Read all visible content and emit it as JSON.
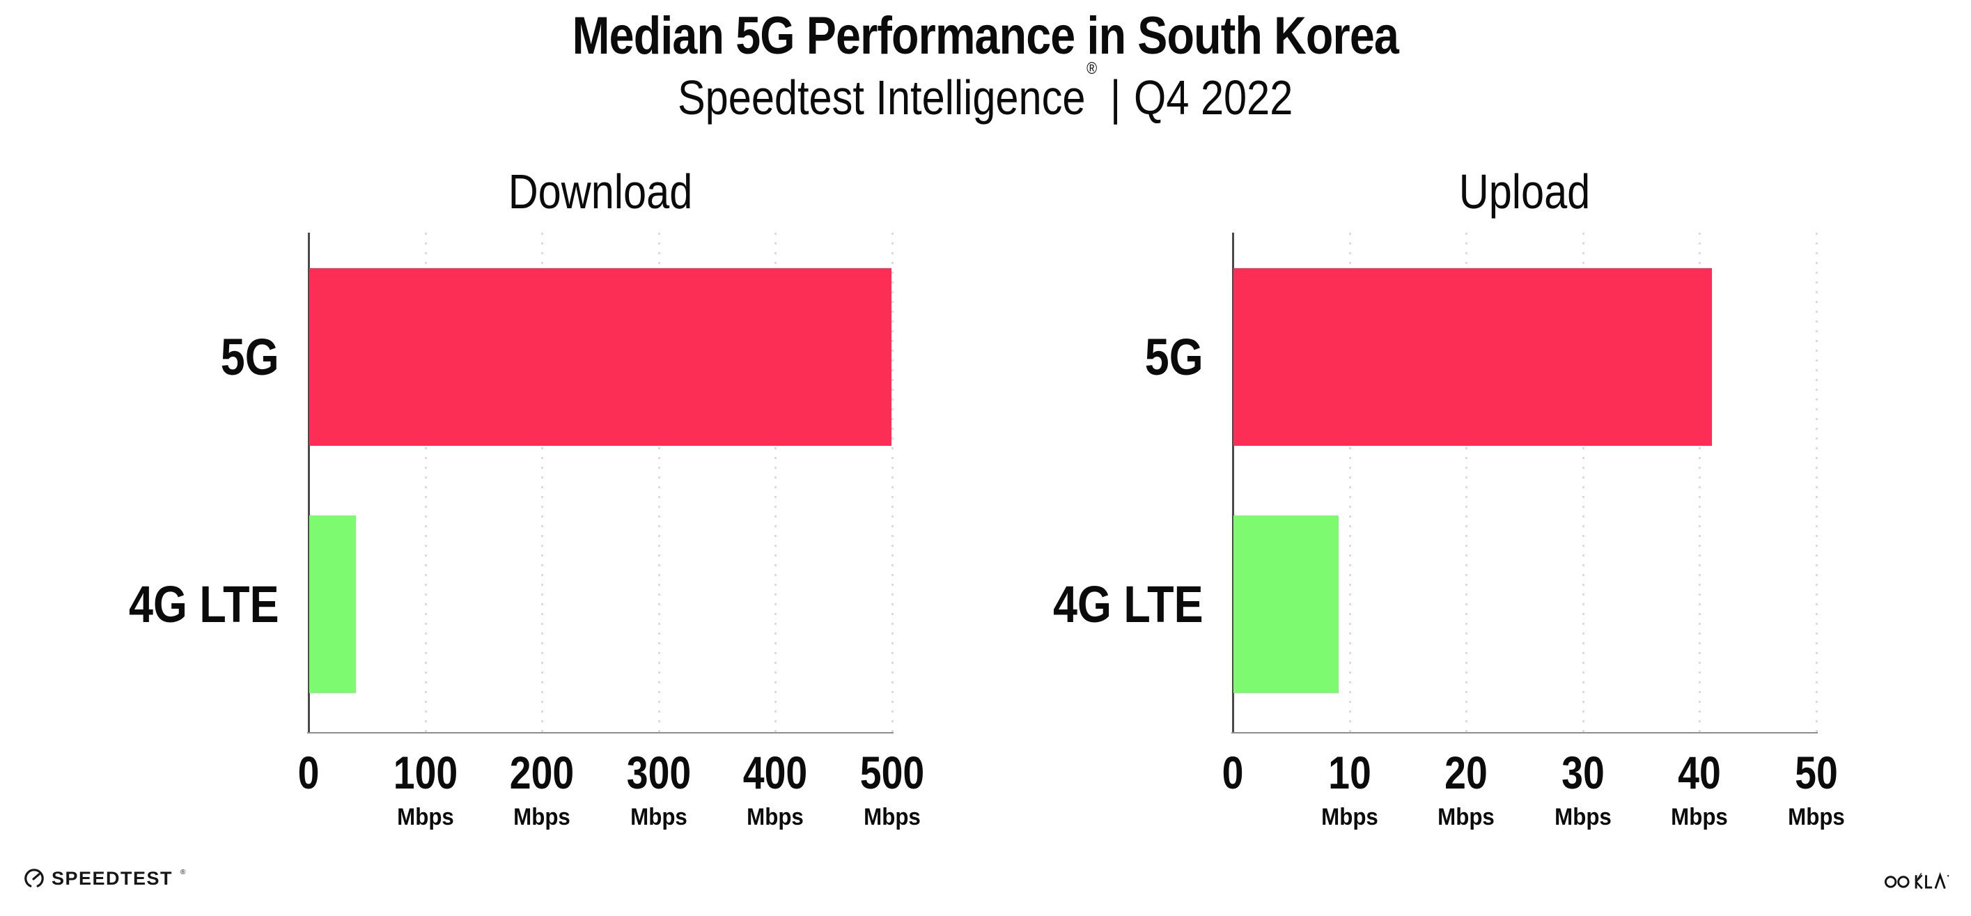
{
  "header": {
    "title": "Median 5G Performance in South Korea",
    "subtitle_product": "Speedtest Intelligence",
    "subtitle_trademark": "®",
    "subtitle_separator": "|",
    "subtitle_period": "Q4 2022"
  },
  "chart_data": [
    {
      "type": "bar",
      "orientation": "horizontal",
      "title": "Download",
      "categories": [
        "5G",
        "4G LTE"
      ],
      "values": [
        499,
        40
      ],
      "unit": "Mbps",
      "xlim": [
        0,
        500
      ],
      "xtick_labels": [
        "0",
        "100",
        "200",
        "300",
        "400",
        "500"
      ],
      "series_colors": [
        "#fd2e56",
        "#7dfa6f"
      ],
      "grid": "vertical-dotted",
      "legend": "none"
    },
    {
      "type": "bar",
      "orientation": "horizontal",
      "title": "Upload",
      "categories": [
        "5G",
        "4G LTE"
      ],
      "values": [
        41,
        9
      ],
      "unit": "Mbps",
      "xlim": [
        0,
        50
      ],
      "xtick_labels": [
        "0",
        "10",
        "20",
        "30",
        "40",
        "50"
      ],
      "series_colors": [
        "#fd2e56",
        "#7dfa6f"
      ],
      "grid": "vertical-dotted",
      "legend": "none"
    }
  ],
  "colors": {
    "bar_5g": "#fd2e56",
    "bar_4g": "#7dfa6f",
    "gridline": "#d9dbe4",
    "y_axis": "#4a4a4a",
    "x_axis": "#8e8e8e",
    "text": "#0b0b0b"
  },
  "footer": {
    "speedtest_wordmark": "SPEEDTEST",
    "speedtest_trademark": "®",
    "ookla_wordmark": "OOKLA"
  }
}
